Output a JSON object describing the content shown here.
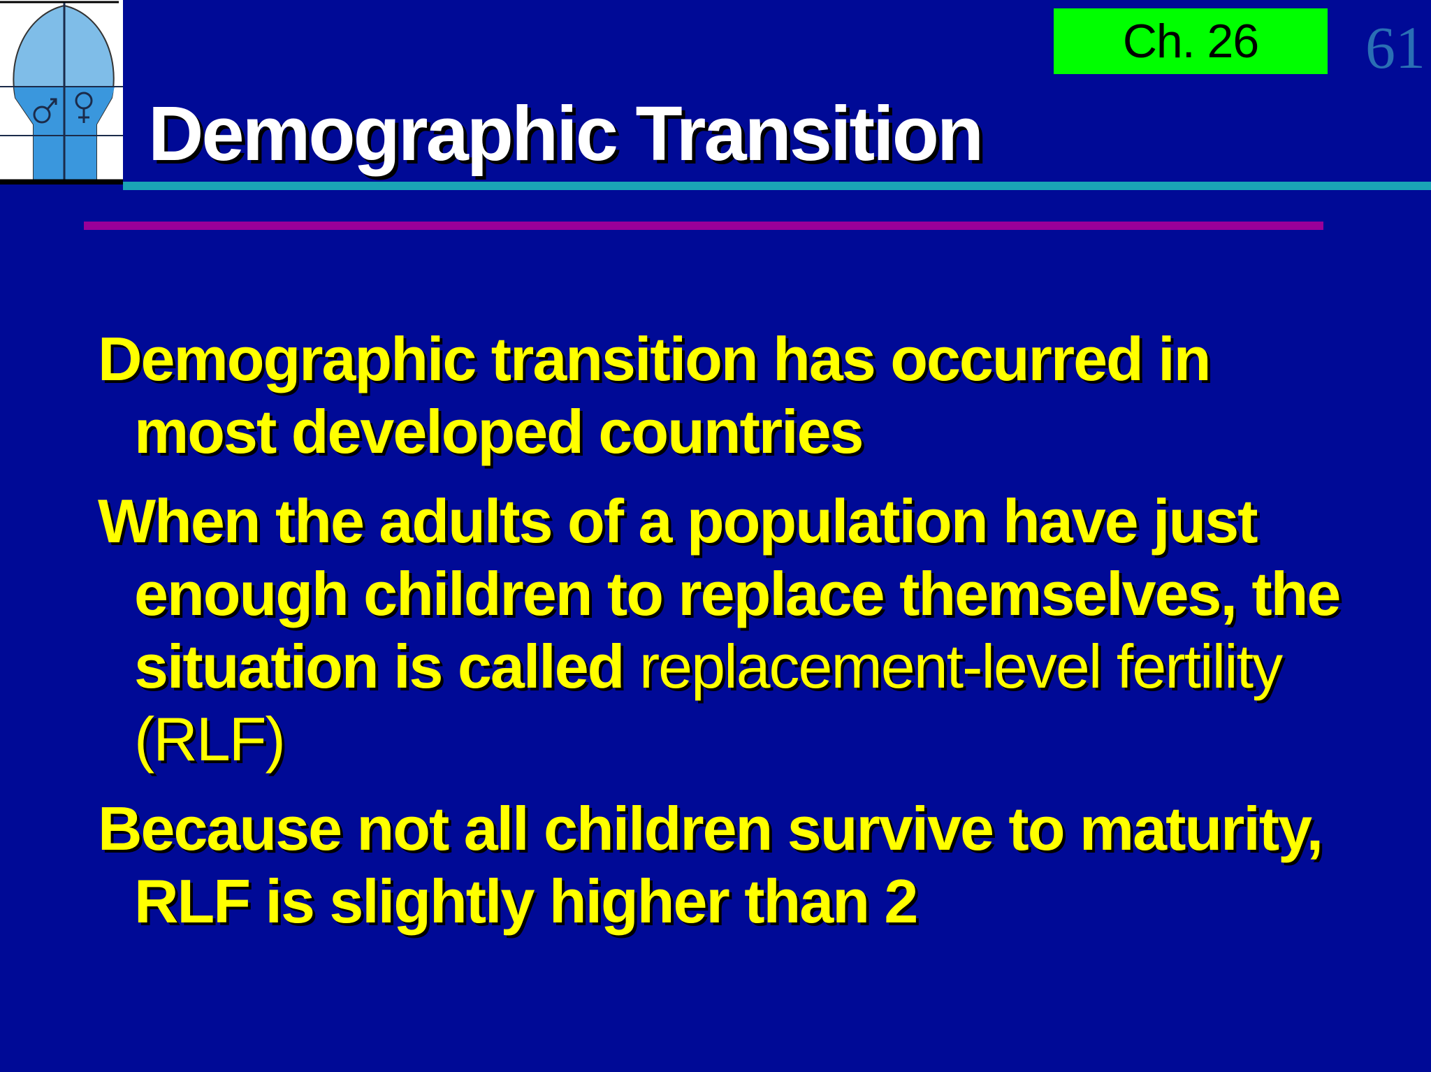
{
  "chapter_label": "Ch. 26",
  "slide_number": "61",
  "title": "Demographic Transition",
  "bullets": {
    "b1": "Demographic transition has occurred in most  developed countries",
    "b2_bold": "When the adults of a population have just enough children to replace themselves, the  situation is called ",
    "b2_term": "replacement-level fertility (RLF)",
    "b3": "Because not all children survive to maturity, RLF is slightly higher than 2"
  },
  "colors": {
    "background": "#000a96",
    "title_text": "#ffffff",
    "body_text": "#ffff00",
    "chapter_badge": "#00ff00",
    "slide_number": "#2a6fb4",
    "rule_cyan": "#1aa3b6",
    "rule_magenta": "#990099"
  },
  "icons": {
    "logo": "population-bulb-icon",
    "male_symbol": "male-symbol-icon",
    "female_symbol": "female-symbol-icon"
  }
}
